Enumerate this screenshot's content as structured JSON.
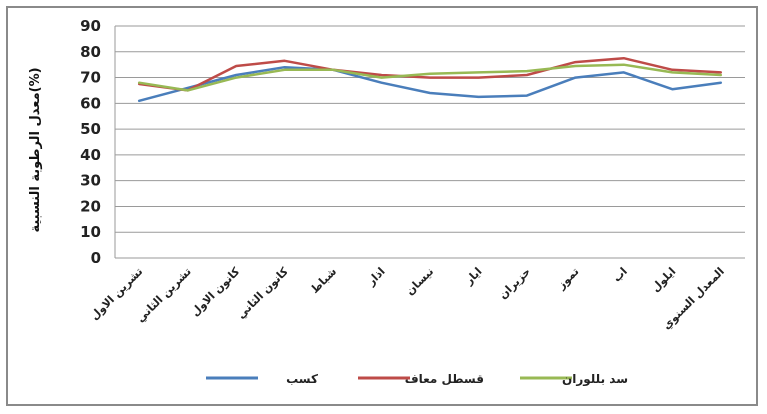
{
  "chart_data": {
    "type": "line",
    "ylabel": "معدل الرطوبة النسبية(%)",
    "xlabel": "",
    "ylim": [
      0,
      90
    ],
    "yticks": [
      0,
      10,
      20,
      30,
      40,
      50,
      60,
      70,
      80,
      90
    ],
    "grid": true,
    "legend_position": "bottom",
    "categories": [
      "تشرين الاول",
      "تشرين الثاني",
      "كانون الاول",
      "كانون الثاني",
      "شباط",
      "اذار",
      "نيسان",
      "ايار",
      "حزيران",
      "تموز",
      "اب",
      "ايلول",
      "المعدل السنوي"
    ],
    "series": [
      {
        "name": "كسب",
        "color": "#4a7ebb",
        "values": [
          61,
          66,
          71,
          74,
          73,
          68,
          64,
          62.5,
          63,
          70,
          72,
          65.5,
          68
        ]
      },
      {
        "name": "قسطل معاف",
        "color": "#be4b48",
        "values": [
          67.5,
          65,
          74.5,
          76.5,
          73,
          71,
          70,
          70,
          71,
          76,
          77.5,
          73,
          72
        ]
      },
      {
        "name": "سد بللوران",
        "color": "#98b954",
        "values": [
          68,
          65,
          70,
          73,
          73,
          70,
          71.5,
          72,
          72.5,
          74.5,
          75,
          72,
          71
        ]
      }
    ]
  }
}
